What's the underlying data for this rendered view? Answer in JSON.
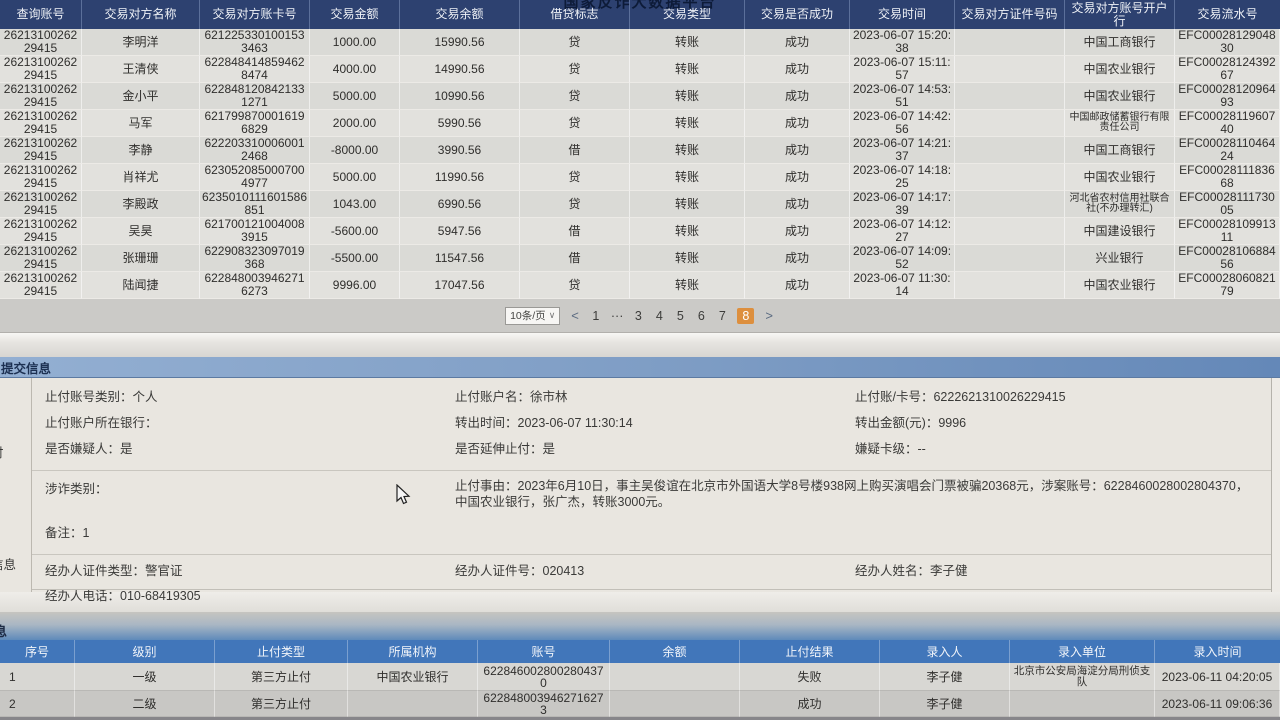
{
  "platform_title": "国家反诈大数据平台",
  "colors": {
    "table_header_navy": "#2d4170",
    "accent_orange": "#dd8f3e",
    "section_blue": "#4176ba",
    "panel_bar_blue": "#7d9cc4"
  },
  "top_table": {
    "columns": [
      "查询账号",
      "交易对方名称",
      "交易对方账卡号",
      "交易金额",
      "交易余额",
      "借贷标志",
      "交易类型",
      "交易是否成功",
      "交易时间",
      "交易对方证件号码",
      "交易对方账号开户行",
      "交易流水号"
    ],
    "rows": [
      [
        "2621310026229415",
        "李明洋",
        "6212253301001533463",
        "1000.00",
        "15990.56",
        "贷",
        "转账",
        "成功",
        "2023-06-07 15:20:38",
        "",
        "中国工商银行",
        "EFC0002812904830"
      ],
      [
        "2621310026229415",
        "王清侠",
        "6228484148594628474",
        "4000.00",
        "14990.56",
        "贷",
        "转账",
        "成功",
        "2023-06-07 15:11:57",
        "",
        "中国农业银行",
        "EFC0002812439267"
      ],
      [
        "2621310026229415",
        "金小平",
        "6228481208421331271",
        "5000.00",
        "10990.56",
        "贷",
        "转账",
        "成功",
        "2023-06-07 14:53:51",
        "",
        "中国农业银行",
        "EFC0002812096493"
      ],
      [
        "2621310026229415",
        "马军",
        "6217998700016196829",
        "2000.00",
        "5990.56",
        "贷",
        "转账",
        "成功",
        "2023-06-07 14:42:56",
        "",
        "中国邮政储蓄银行有限责任公司",
        "EFC0002811960740"
      ],
      [
        "2621310026229415",
        "李静",
        "6222033100060012468",
        "-8000.00",
        "3990.56",
        "借",
        "转账",
        "成功",
        "2023-06-07 14:21:37",
        "",
        "中国工商银行",
        "EFC0002811046424"
      ],
      [
        "2621310026229415",
        "肖祥尤",
        "6230520850007004977",
        "5000.00",
        "11990.56",
        "贷",
        "转账",
        "成功",
        "2023-06-07 14:18:25",
        "",
        "中国农业银行",
        "EFC0002811183668"
      ],
      [
        "2621310026229415",
        "李殿政",
        "6235010111601586851",
        "1043.00",
        "6990.56",
        "贷",
        "转账",
        "成功",
        "2023-06-07 14:17:39",
        "",
        "河北省农村信用社联合社(不办理转汇)",
        "EFC0002811173005"
      ],
      [
        "2621310026229415",
        "吴昊",
        "6217001210040083915",
        "-5600.00",
        "5947.56",
        "借",
        "转账",
        "成功",
        "2023-06-07 14:12:27",
        "",
        "中国建设银行",
        "EFC0002810991311"
      ],
      [
        "2621310026229415",
        "张珊珊",
        "622908323097019368",
        "-5500.00",
        "11547.56",
        "借",
        "转账",
        "成功",
        "2023-06-07 14:09:52",
        "",
        "兴业银行",
        "EFC0002810688456"
      ],
      [
        "2621310026229415",
        "陆闻捷",
        "6228480039462716273",
        "9996.00",
        "17047.56",
        "贷",
        "转账",
        "成功",
        "2023-06-07 11:30:14",
        "",
        "中国农业银行",
        "EFC0002806082179"
      ]
    ]
  },
  "pagination": {
    "size_selector": "10条/页",
    "chevron_icon": "∨",
    "prev_icon": "<",
    "next_icon": ">",
    "pages": [
      "1",
      "···",
      "3",
      "4",
      "5",
      "6",
      "7",
      "8"
    ],
    "current_page": "8"
  },
  "submit_info": {
    "title": "提交信息",
    "gutter_fragments": [
      "付",
      "信息"
    ],
    "section1": [
      [
        {
          "label": "止付账号类别",
          "value": "个人"
        },
        {
          "label": "止付账户名",
          "value": "徐市林"
        },
        {
          "label": "止付账/卡号",
          "value": "6222621310026229415"
        }
      ],
      [
        {
          "label": "止付账户所在银行",
          "value": ""
        },
        {
          "label": "转出时间",
          "value": "2023-06-07 11:30:14"
        },
        {
          "label": "转出金额(元)",
          "value": "9996"
        }
      ],
      [
        {
          "label": "是否嫌疑人",
          "value": "是"
        },
        {
          "label": "是否延伸止付",
          "value": "是"
        },
        {
          "label": "嫌疑卡级",
          "value": "--"
        }
      ]
    ],
    "section2": {
      "category": {
        "label": "涉诈类别",
        "value": ""
      },
      "reason": {
        "label": "止付事由",
        "value": "2023年6月10日，事主吴俊谊在北京市外国语大学8号楼938网上购买演唱会门票被骗20368元，涉案账号：6228460028002804370，中国农业银行，张广杰，转账3000元。"
      },
      "note": {
        "label": "备注",
        "value": "1"
      }
    },
    "section3": [
      [
        {
          "label": "经办人证件类型",
          "value": "警官证"
        },
        {
          "label": "经办人证件号",
          "value": "020413"
        },
        {
          "label": "经办人姓名",
          "value": "李子健"
        }
      ],
      [
        {
          "label": "经办人电话",
          "value": "010-68419305"
        }
      ]
    ]
  },
  "stop_section": {
    "fragment": "息"
  },
  "bottom_table": {
    "columns": [
      "序号",
      "级别",
      "止付类型",
      "所属机构",
      "账号",
      "余额",
      "止付结果",
      "录入人",
      "录入单位",
      "录入时间"
    ],
    "rows": [
      [
        "1",
        "一级",
        "第三方止付",
        "中国农业银行",
        "6228460028002804370",
        "",
        "失败",
        "李子健",
        "北京市公安局海淀分局刑侦支队",
        "2023-06-11 04:20:05"
      ],
      [
        "2",
        "二级",
        "第三方止付",
        "",
        "6228480039462716273",
        "",
        "成功",
        "李子健",
        "",
        "2023-06-11 09:06:36"
      ]
    ]
  }
}
